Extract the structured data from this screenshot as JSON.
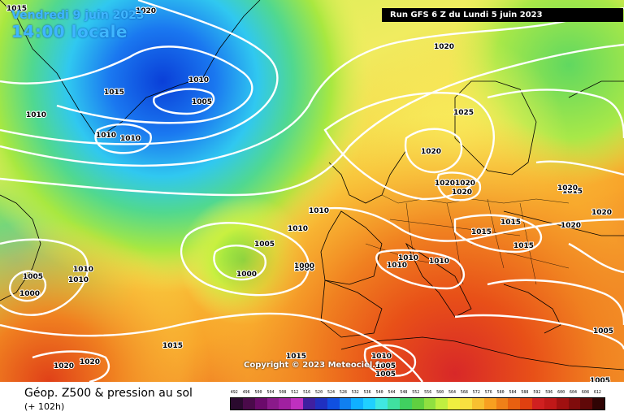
{
  "header": {
    "date_line": "Vendredi 9 juin 2023",
    "time_line": "14:00 locale",
    "run_info": "Run GFS 6 Z du Lundi 5 juin 2023"
  },
  "copyright": "Copyright © 2023 Meteociel.fr",
  "footer": {
    "title": "Géop. Z500 & pression au sol",
    "subtitle": "(+ 102h)"
  },
  "legend": {
    "ticks": [
      "492",
      "496",
      "500",
      "504",
      "508",
      "512",
      "516",
      "520",
      "524",
      "528",
      "532",
      "536",
      "540",
      "544",
      "548",
      "552",
      "556",
      "560",
      "564",
      "568",
      "572",
      "576",
      "580",
      "584",
      "588",
      "592",
      "596",
      "600",
      "604",
      "608",
      "612"
    ],
    "colors": [
      "#2a0a2e",
      "#4a0a4a",
      "#6b0a6b",
      "#8a1a8a",
      "#a020a0",
      "#c030c0",
      "#4020a0",
      "#2030c0",
      "#1050e0",
      "#1080f0",
      "#10b0ff",
      "#20d0ff",
      "#40e8e0",
      "#40e0a0",
      "#40d060",
      "#60d040",
      "#90e040",
      "#c0f040",
      "#f0f040",
      "#f8e040",
      "#f8c030",
      "#f8a020",
      "#f08018",
      "#e86010",
      "#e04010",
      "#d02020",
      "#c01818",
      "#a01010",
      "#800c0c",
      "#600808",
      "#300404"
    ]
  },
  "isobar_labels": [
    {
      "text": "1015"
    },
    {
      "text": "1020"
    },
    {
      "text": "1010"
    },
    {
      "text": "1005"
    },
    {
      "text": "1015"
    },
    {
      "text": "1010"
    },
    {
      "text": "1010"
    },
    {
      "text": "1010"
    },
    {
      "text": "1020"
    },
    {
      "text": "1025"
    },
    {
      "text": "1020"
    },
    {
      "text": "1020"
    },
    {
      "text": "1020"
    },
    {
      "text": "1020"
    },
    {
      "text": "1015"
    },
    {
      "text": "1010"
    },
    {
      "text": "1005"
    },
    {
      "text": "1000"
    },
    {
      "text": "1000"
    },
    {
      "text": "1005"
    },
    {
      "text": "1000"
    },
    {
      "text": "1010"
    },
    {
      "text": "1010"
    },
    {
      "text": "1015"
    },
    {
      "text": "1015"
    },
    {
      "text": "1010"
    },
    {
      "text": "1010"
    },
    {
      "text": "1010"
    },
    {
      "text": "1020"
    },
    {
      "text": "1020"
    },
    {
      "text": "1020"
    },
    {
      "text": "1010"
    },
    {
      "text": "1005"
    },
    {
      "text": "1015"
    },
    {
      "text": "1015"
    },
    {
      "text": "1010"
    },
    {
      "text": "1005"
    },
    {
      "text": "1000"
    },
    {
      "text": "1020"
    },
    {
      "text": "1020"
    },
    {
      "text": "1015"
    },
    {
      "text": "1005"
    },
    {
      "text": "1005"
    }
  ]
}
